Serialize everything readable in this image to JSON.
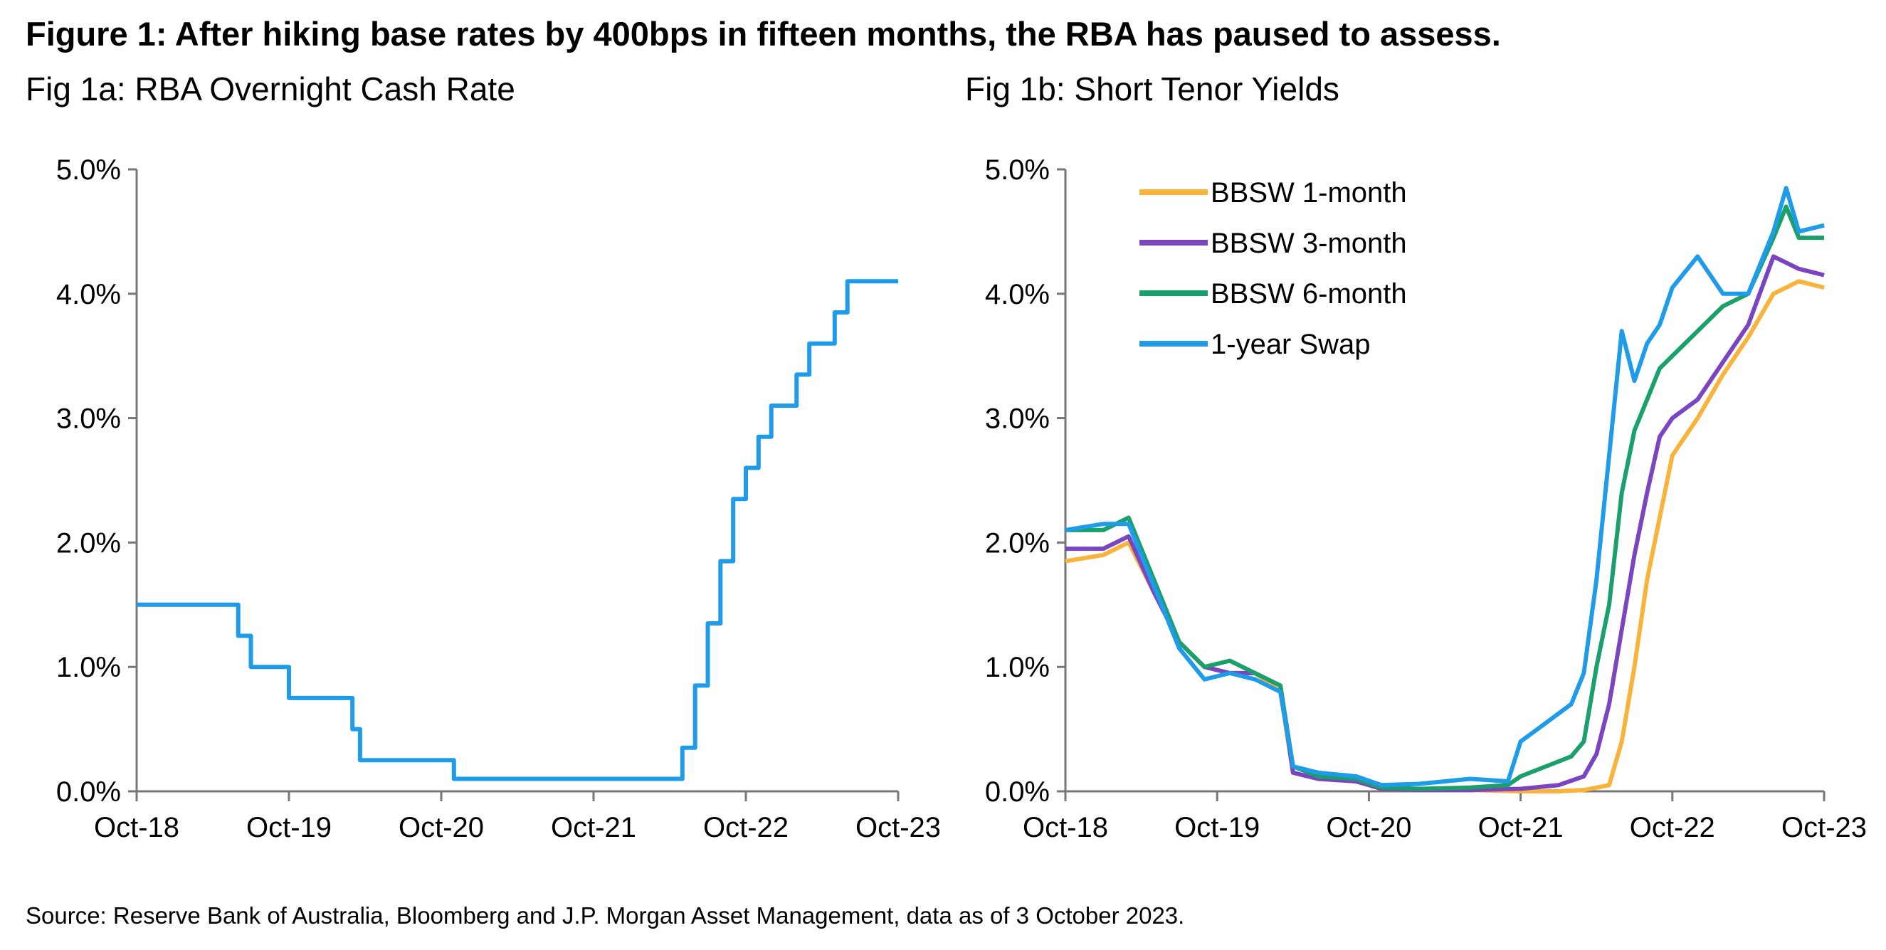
{
  "title": "Figure 1: After hiking base rates by 400bps in fifteen months, the RBA has paused to assess.",
  "source": "Source: Reserve Bank of Australia, Bloomberg and J.P. Morgan Asset Management, data as of 3 October 2023.",
  "chart_data": [
    {
      "type": "line",
      "title": "Fig 1a: RBA Overnight Cash Rate",
      "xlabel": "",
      "ylabel": "",
      "x_range": [
        "2018-10",
        "2023-10"
      ],
      "ylim": [
        0,
        5
      ],
      "x_ticks": [
        "Oct-18",
        "Oct-19",
        "Oct-20",
        "Oct-21",
        "Oct-22",
        "Oct-23"
      ],
      "y_ticks": [
        "0.0%",
        "1.0%",
        "2.0%",
        "3.0%",
        "4.0%",
        "5.0%"
      ],
      "grid": false,
      "step": true,
      "series": [
        {
          "color": "#1e9be9",
          "x": [
            "2018-10",
            "2019-06",
            "2019-07",
            "2019-10",
            "2020-03",
            "2020-03-19",
            "2020-11",
            "2022-05",
            "2022-06",
            "2022-07",
            "2022-08",
            "2022-09",
            "2022-10",
            "2022-11",
            "2022-12",
            "2023-02",
            "2023-03",
            "2023-05",
            "2023-06",
            "2023-10"
          ],
          "y": [
            1.5,
            1.25,
            1.0,
            0.75,
            0.5,
            0.25,
            0.1,
            0.35,
            0.85,
            1.35,
            1.85,
            2.35,
            2.6,
            2.85,
            3.1,
            3.35,
            3.6,
            3.85,
            4.1,
            4.1
          ]
        }
      ]
    },
    {
      "type": "line",
      "title": "Fig 1b: Short Tenor Yields",
      "xlabel": "",
      "ylabel": "",
      "x_range": [
        "2018-10",
        "2023-10"
      ],
      "ylim": [
        0,
        5
      ],
      "x_ticks": [
        "Oct-18",
        "Oct-19",
        "Oct-20",
        "Oct-21",
        "Oct-22",
        "Oct-23"
      ],
      "y_ticks": [
        "0.0%",
        "1.0%",
        "2.0%",
        "3.0%",
        "4.0%",
        "5.0%"
      ],
      "grid": false,
      "legend": "top-left",
      "series": [
        {
          "name": "BBSW 1-month",
          "color": "#f9b33a",
          "x": [
            "2018-10",
            "2019-01",
            "2019-03",
            "2019-05",
            "2019-07",
            "2019-09",
            "2019-11",
            "2020-01",
            "2020-03",
            "2020-04",
            "2020-06",
            "2020-09",
            "2020-11",
            "2021-02",
            "2021-06",
            "2021-10",
            "2022-01",
            "2022-03",
            "2022-05",
            "2022-06",
            "2022-07",
            "2022-08",
            "2022-09",
            "2022-10",
            "2022-12",
            "2023-02",
            "2023-04",
            "2023-06",
            "2023-08",
            "2023-10"
          ],
          "y": [
            1.85,
            1.9,
            2.0,
            1.6,
            1.2,
            1.0,
            0.95,
            0.95,
            0.8,
            0.15,
            0.1,
            0.08,
            0.02,
            0.01,
            0.01,
            0.0,
            0.0,
            0.01,
            0.05,
            0.4,
            1.0,
            1.7,
            2.2,
            2.7,
            3.0,
            3.35,
            3.65,
            4.0,
            4.1,
            4.05
          ]
        },
        {
          "name": "BBSW 3-month",
          "color": "#7b44c0",
          "x": [
            "2018-10",
            "2019-01",
            "2019-03",
            "2019-05",
            "2019-07",
            "2019-09",
            "2019-11",
            "2020-01",
            "2020-03",
            "2020-04",
            "2020-06",
            "2020-09",
            "2020-11",
            "2021-02",
            "2021-06",
            "2021-10",
            "2022-01",
            "2022-03",
            "2022-04",
            "2022-05",
            "2022-06",
            "2022-07",
            "2022-08",
            "2022-09",
            "2022-10",
            "2022-12",
            "2023-02",
            "2023-04",
            "2023-06",
            "2023-08",
            "2023-10"
          ],
          "y": [
            1.95,
            1.95,
            2.05,
            1.6,
            1.2,
            1.0,
            0.95,
            0.95,
            0.85,
            0.15,
            0.1,
            0.08,
            0.02,
            0.01,
            0.01,
            0.02,
            0.05,
            0.12,
            0.3,
            0.7,
            1.3,
            1.9,
            2.4,
            2.85,
            3.0,
            3.15,
            3.45,
            3.75,
            4.3,
            4.2,
            4.15
          ]
        },
        {
          "name": "BBSW 6-month",
          "color": "#1aa06b",
          "x": [
            "2018-10",
            "2019-01",
            "2019-03",
            "2019-05",
            "2019-07",
            "2019-09",
            "2019-11",
            "2020-01",
            "2020-03",
            "2020-04",
            "2020-06",
            "2020-09",
            "2020-11",
            "2021-02",
            "2021-06",
            "2021-09",
            "2021-10",
            "2021-12",
            "2022-02",
            "2022-03",
            "2022-04",
            "2022-05",
            "2022-06",
            "2022-07",
            "2022-08",
            "2022-09",
            "2022-10",
            "2022-12",
            "2023-02",
            "2023-04",
            "2023-06",
            "2023-07",
            "2023-08",
            "2023-10"
          ],
          "y": [
            2.1,
            2.1,
            2.2,
            1.7,
            1.2,
            1.0,
            1.05,
            0.95,
            0.85,
            0.2,
            0.12,
            0.1,
            0.03,
            0.02,
            0.03,
            0.05,
            0.12,
            0.2,
            0.28,
            0.4,
            1.0,
            1.5,
            2.4,
            2.9,
            3.15,
            3.4,
            3.5,
            3.7,
            3.9,
            4.0,
            4.45,
            4.7,
            4.45,
            4.45
          ]
        },
        {
          "name": "1-year Swap",
          "color": "#1e9be9",
          "x": [
            "2018-10",
            "2019-01",
            "2019-03",
            "2019-05",
            "2019-07",
            "2019-09",
            "2019-11",
            "2020-01",
            "2020-03",
            "2020-04",
            "2020-06",
            "2020-09",
            "2020-11",
            "2021-02",
            "2021-06",
            "2021-09",
            "2021-10",
            "2021-12",
            "2022-02",
            "2022-03",
            "2022-04",
            "2022-05",
            "2022-06",
            "2022-07",
            "2022-08",
            "2022-09",
            "2022-10",
            "2022-12",
            "2023-02",
            "2023-04",
            "2023-06",
            "2023-07",
            "2023-08",
            "2023-10"
          ],
          "y": [
            2.1,
            2.15,
            2.15,
            1.65,
            1.15,
            0.9,
            0.95,
            0.9,
            0.8,
            0.2,
            0.15,
            0.12,
            0.05,
            0.06,
            0.1,
            0.08,
            0.4,
            0.55,
            0.7,
            0.95,
            1.7,
            2.7,
            3.7,
            3.3,
            3.6,
            3.75,
            4.05,
            4.3,
            4.0,
            4.0,
            4.5,
            4.85,
            4.5,
            4.55
          ]
        }
      ]
    }
  ]
}
